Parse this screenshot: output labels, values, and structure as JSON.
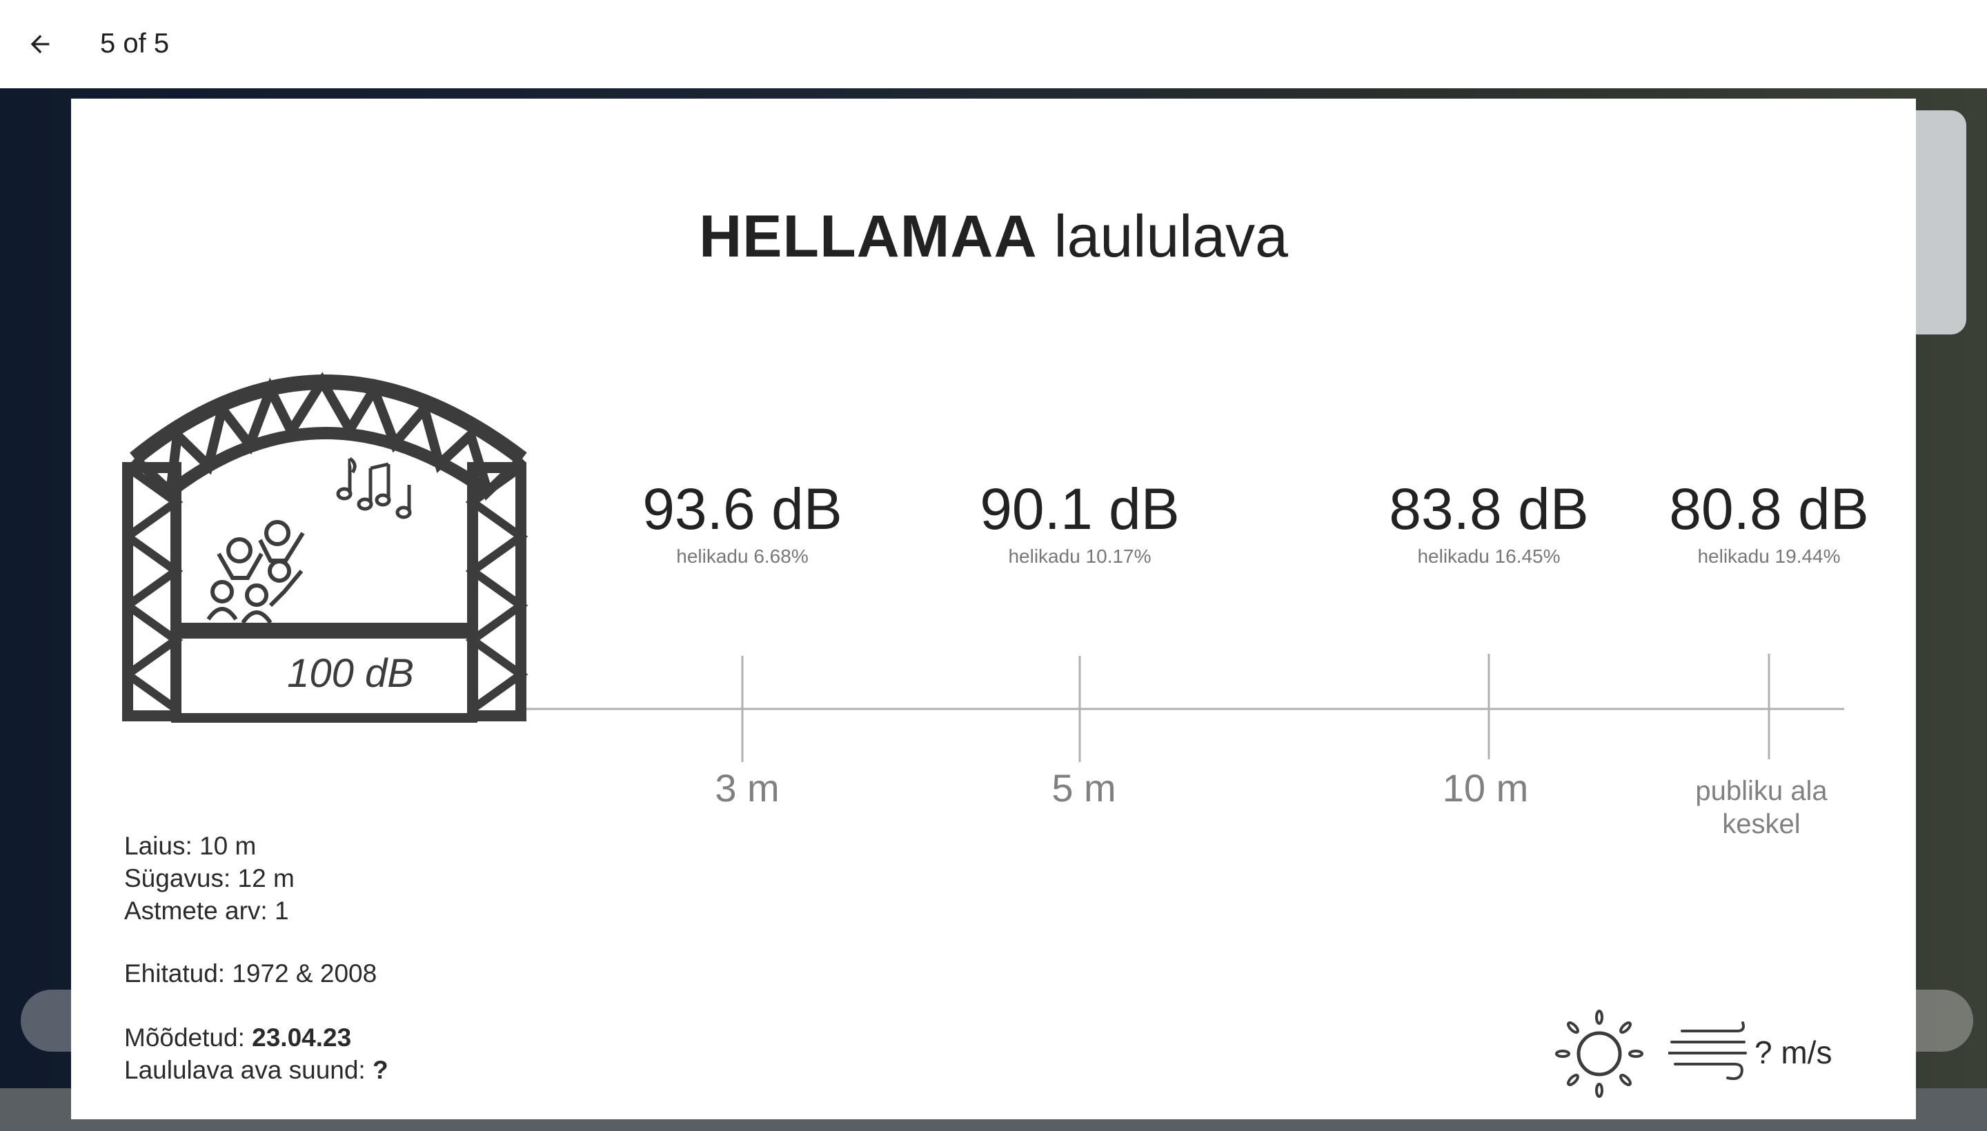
{
  "header": {
    "counter": "5 of 5"
  },
  "poster": {
    "title_bold": "HELLAMAA",
    "title_rest": "laululava",
    "stage_level": "100 dB",
    "measurements": [
      {
        "db": "93.6 dB",
        "loss": "helikadu 6.68%",
        "distance": "3 m"
      },
      {
        "db": "90.1 dB",
        "loss": "helikadu 10.17%",
        "distance": "5 m"
      },
      {
        "db": "83.8 dB",
        "loss": "helikadu 16.45%",
        "distance": "10 m"
      },
      {
        "db": "80.8 dB",
        "loss": "helikadu 19.44%",
        "distance_line1": "publiku ala",
        "distance_line2": "keskel"
      }
    ],
    "info": {
      "width": "Laius: 10 m",
      "depth": "Sügavus: 12 m",
      "steps": "Astmete arv: 1",
      "built": "Ehitatud: 1972 & 2008",
      "measured_label": "Mõõdetud: ",
      "measured_value": "23.04.23",
      "direction_label": "Laululava ava suund: ",
      "direction_value": "?"
    },
    "wind_speed": "? m/s",
    "icons": [
      "stage-icon",
      "sun-icon",
      "wind-icon",
      "music-notes-icon",
      "crowd-icon"
    ]
  }
}
